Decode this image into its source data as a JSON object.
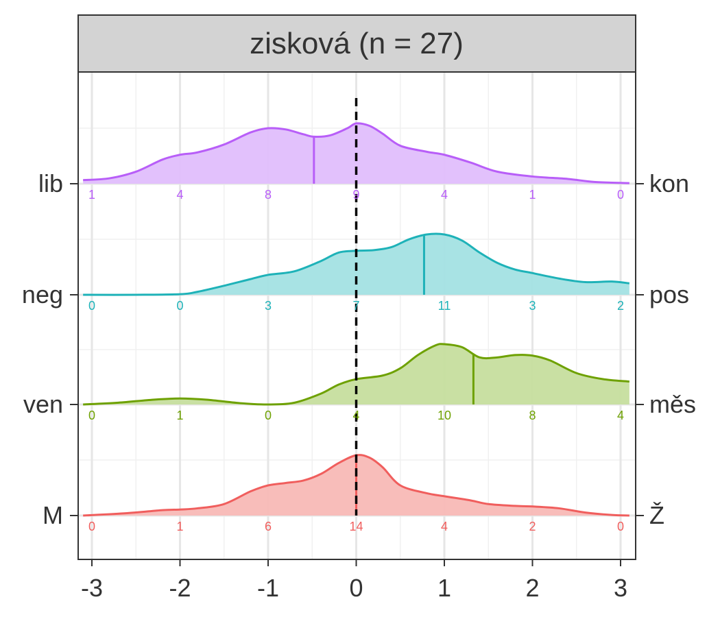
{
  "chart_data": {
    "type": "ridgeline-density",
    "title": "zisková (n = 27)",
    "x_ticks": [
      -3,
      -2,
      -1,
      0,
      1,
      2,
      3
    ],
    "x_tick_labels": [
      "-3",
      "-2",
      "-1",
      "0",
      "1",
      "2",
      "3"
    ],
    "xlim": [
      -3.1,
      3.1
    ],
    "reference_line_x": 0,
    "rows": [
      {
        "left_label": "lib",
        "right_label": "kon",
        "color": "#B85EF8",
        "fill": "#E0BEFC",
        "median": -0.48,
        "counts": [
          "1",
          "4",
          "8",
          "9",
          "4",
          "1",
          "0"
        ],
        "density": [
          [
            -3.1,
            0.06
          ],
          [
            -2.8,
            0.09
          ],
          [
            -2.5,
            0.2
          ],
          [
            -2.2,
            0.4
          ],
          [
            -2.0,
            0.48
          ],
          [
            -1.8,
            0.52
          ],
          [
            -1.5,
            0.65
          ],
          [
            -1.2,
            0.85
          ],
          [
            -1.0,
            0.92
          ],
          [
            -0.8,
            0.9
          ],
          [
            -0.6,
            0.82
          ],
          [
            -0.48,
            0.78
          ],
          [
            -0.3,
            0.8
          ],
          [
            -0.1,
            0.92
          ],
          [
            0.0,
            1.0
          ],
          [
            0.15,
            0.96
          ],
          [
            0.3,
            0.83
          ],
          [
            0.5,
            0.63
          ],
          [
            0.8,
            0.53
          ],
          [
            1.0,
            0.48
          ],
          [
            1.3,
            0.35
          ],
          [
            1.6,
            0.2
          ],
          [
            2.0,
            0.12
          ],
          [
            2.4,
            0.08
          ],
          [
            2.7,
            0.03
          ],
          [
            3.1,
            0.01
          ]
        ]
      },
      {
        "left_label": "neg",
        "right_label": "pos",
        "color": "#1EB2B8",
        "fill": "#A3E1E3",
        "median": 0.77,
        "counts": [
          "0",
          "0",
          "3",
          "7",
          "11",
          "3",
          "2"
        ],
        "density": [
          [
            -3.1,
            0.0
          ],
          [
            -2.5,
            0.0
          ],
          [
            -2.0,
            0.01
          ],
          [
            -1.8,
            0.05
          ],
          [
            -1.5,
            0.15
          ],
          [
            -1.2,
            0.26
          ],
          [
            -1.0,
            0.33
          ],
          [
            -0.7,
            0.39
          ],
          [
            -0.4,
            0.56
          ],
          [
            -0.2,
            0.7
          ],
          [
            0.0,
            0.73
          ],
          [
            0.2,
            0.74
          ],
          [
            0.4,
            0.79
          ],
          [
            0.6,
            0.92
          ],
          [
            0.8,
            1.0
          ],
          [
            1.0,
            1.0
          ],
          [
            1.2,
            0.9
          ],
          [
            1.4,
            0.7
          ],
          [
            1.6,
            0.53
          ],
          [
            1.8,
            0.42
          ],
          [
            2.0,
            0.36
          ],
          [
            2.3,
            0.27
          ],
          [
            2.6,
            0.21
          ],
          [
            2.9,
            0.22
          ],
          [
            3.1,
            0.19
          ]
        ]
      },
      {
        "left_label": "ven",
        "right_label": "měs",
        "color": "#6EA102",
        "fill": "#C6DE9E",
        "median": 1.33,
        "counts": [
          "0",
          "1",
          "0",
          "4",
          "10",
          "8",
          "4"
        ],
        "density": [
          [
            -3.1,
            0.0
          ],
          [
            -2.7,
            0.03
          ],
          [
            -2.3,
            0.08
          ],
          [
            -2.0,
            0.1
          ],
          [
            -1.7,
            0.08
          ],
          [
            -1.3,
            0.02
          ],
          [
            -1.0,
            0.0
          ],
          [
            -0.7,
            0.03
          ],
          [
            -0.4,
            0.18
          ],
          [
            -0.2,
            0.33
          ],
          [
            0.0,
            0.42
          ],
          [
            0.3,
            0.48
          ],
          [
            0.5,
            0.6
          ],
          [
            0.7,
            0.82
          ],
          [
            0.9,
            0.98
          ],
          [
            1.0,
            1.0
          ],
          [
            1.2,
            0.95
          ],
          [
            1.4,
            0.78
          ],
          [
            1.6,
            0.78
          ],
          [
            1.8,
            0.82
          ],
          [
            2.0,
            0.81
          ],
          [
            2.2,
            0.73
          ],
          [
            2.5,
            0.52
          ],
          [
            2.8,
            0.42
          ],
          [
            3.1,
            0.38
          ]
        ]
      },
      {
        "left_label": "M",
        "right_label": "Ž",
        "color": "#F05E5D",
        "fill": "#F8B9B6",
        "median": 0.0,
        "counts": [
          "0",
          "1",
          "6",
          "14",
          "4",
          "2",
          "0"
        ],
        "density": [
          [
            -3.1,
            0.0
          ],
          [
            -2.6,
            0.04
          ],
          [
            -2.2,
            0.09
          ],
          [
            -2.0,
            0.1
          ],
          [
            -1.8,
            0.12
          ],
          [
            -1.5,
            0.19
          ],
          [
            -1.2,
            0.4
          ],
          [
            -1.0,
            0.5
          ],
          [
            -0.8,
            0.54
          ],
          [
            -0.6,
            0.58
          ],
          [
            -0.4,
            0.69
          ],
          [
            -0.2,
            0.87
          ],
          [
            0.0,
            1.0
          ],
          [
            0.15,
            0.96
          ],
          [
            0.3,
            0.8
          ],
          [
            0.5,
            0.5
          ],
          [
            0.8,
            0.37
          ],
          [
            1.0,
            0.32
          ],
          [
            1.3,
            0.25
          ],
          [
            1.5,
            0.19
          ],
          [
            1.8,
            0.16
          ],
          [
            2.0,
            0.15
          ],
          [
            2.3,
            0.12
          ],
          [
            2.6,
            0.05
          ],
          [
            2.9,
            0.01
          ],
          [
            3.1,
            0.0
          ]
        ]
      }
    ]
  }
}
